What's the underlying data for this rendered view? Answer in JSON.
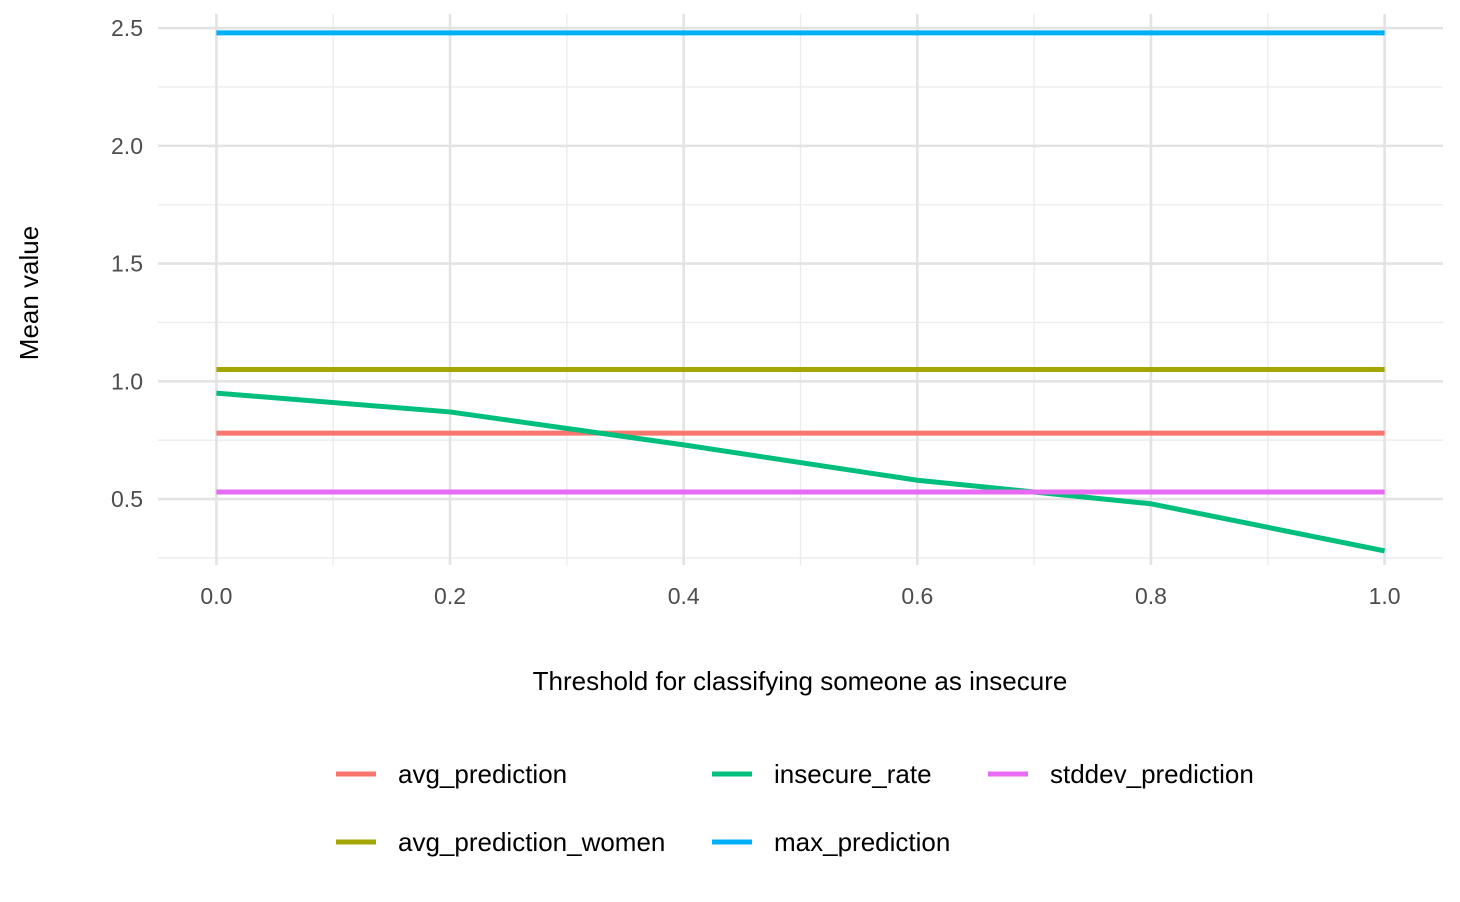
{
  "chart_data": {
    "type": "line",
    "title": "",
    "xlabel": "Threshold for classifying someone as insecure",
    "ylabel": "Mean value",
    "xlim": [
      -0.05,
      1.05
    ],
    "ylim": [
      0.22,
      2.56
    ],
    "x_ticks": [
      0.0,
      0.2,
      0.4,
      0.6,
      0.8,
      1.0
    ],
    "x_tick_labels": [
      "0.0",
      "0.2",
      "0.4",
      "0.6",
      "0.8",
      "1.0"
    ],
    "x_minor_ticks": [
      0.1,
      0.3,
      0.5,
      0.7,
      0.9
    ],
    "y_ticks": [
      0.5,
      1.0,
      1.5,
      2.0,
      2.5
    ],
    "y_tick_labels": [
      "0.5",
      "1.0",
      "1.5",
      "2.0",
      "2.5"
    ],
    "y_minor_ticks": [
      0.25,
      0.75,
      1.25,
      1.75,
      2.25
    ],
    "grid": true,
    "legend_position": "bottom",
    "x": [
      0.0,
      0.2,
      0.4,
      0.6,
      0.8,
      1.0
    ],
    "series": [
      {
        "name": "avg_prediction",
        "color": "#F8766D",
        "values": [
          0.78,
          0.78,
          0.78,
          0.78,
          0.78,
          0.78
        ]
      },
      {
        "name": "avg_prediction_women",
        "color": "#A3A500",
        "values": [
          1.05,
          1.05,
          1.05,
          1.05,
          1.05,
          1.05
        ]
      },
      {
        "name": "insecure_rate",
        "color": "#00BF7D",
        "values": [
          0.95,
          0.87,
          0.73,
          0.58,
          0.48,
          0.28
        ]
      },
      {
        "name": "max_prediction",
        "color": "#00B0F6",
        "values": [
          2.48,
          2.48,
          2.48,
          2.48,
          2.48,
          2.48
        ]
      },
      {
        "name": "stddev_prediction",
        "color": "#E76BF3",
        "values": [
          0.53,
          0.53,
          0.53,
          0.53,
          0.53,
          0.53
        ]
      }
    ],
    "legend_order": [
      "avg_prediction",
      "insecure_rate",
      "stddev_prediction",
      "avg_prediction_women",
      "max_prediction"
    ]
  }
}
